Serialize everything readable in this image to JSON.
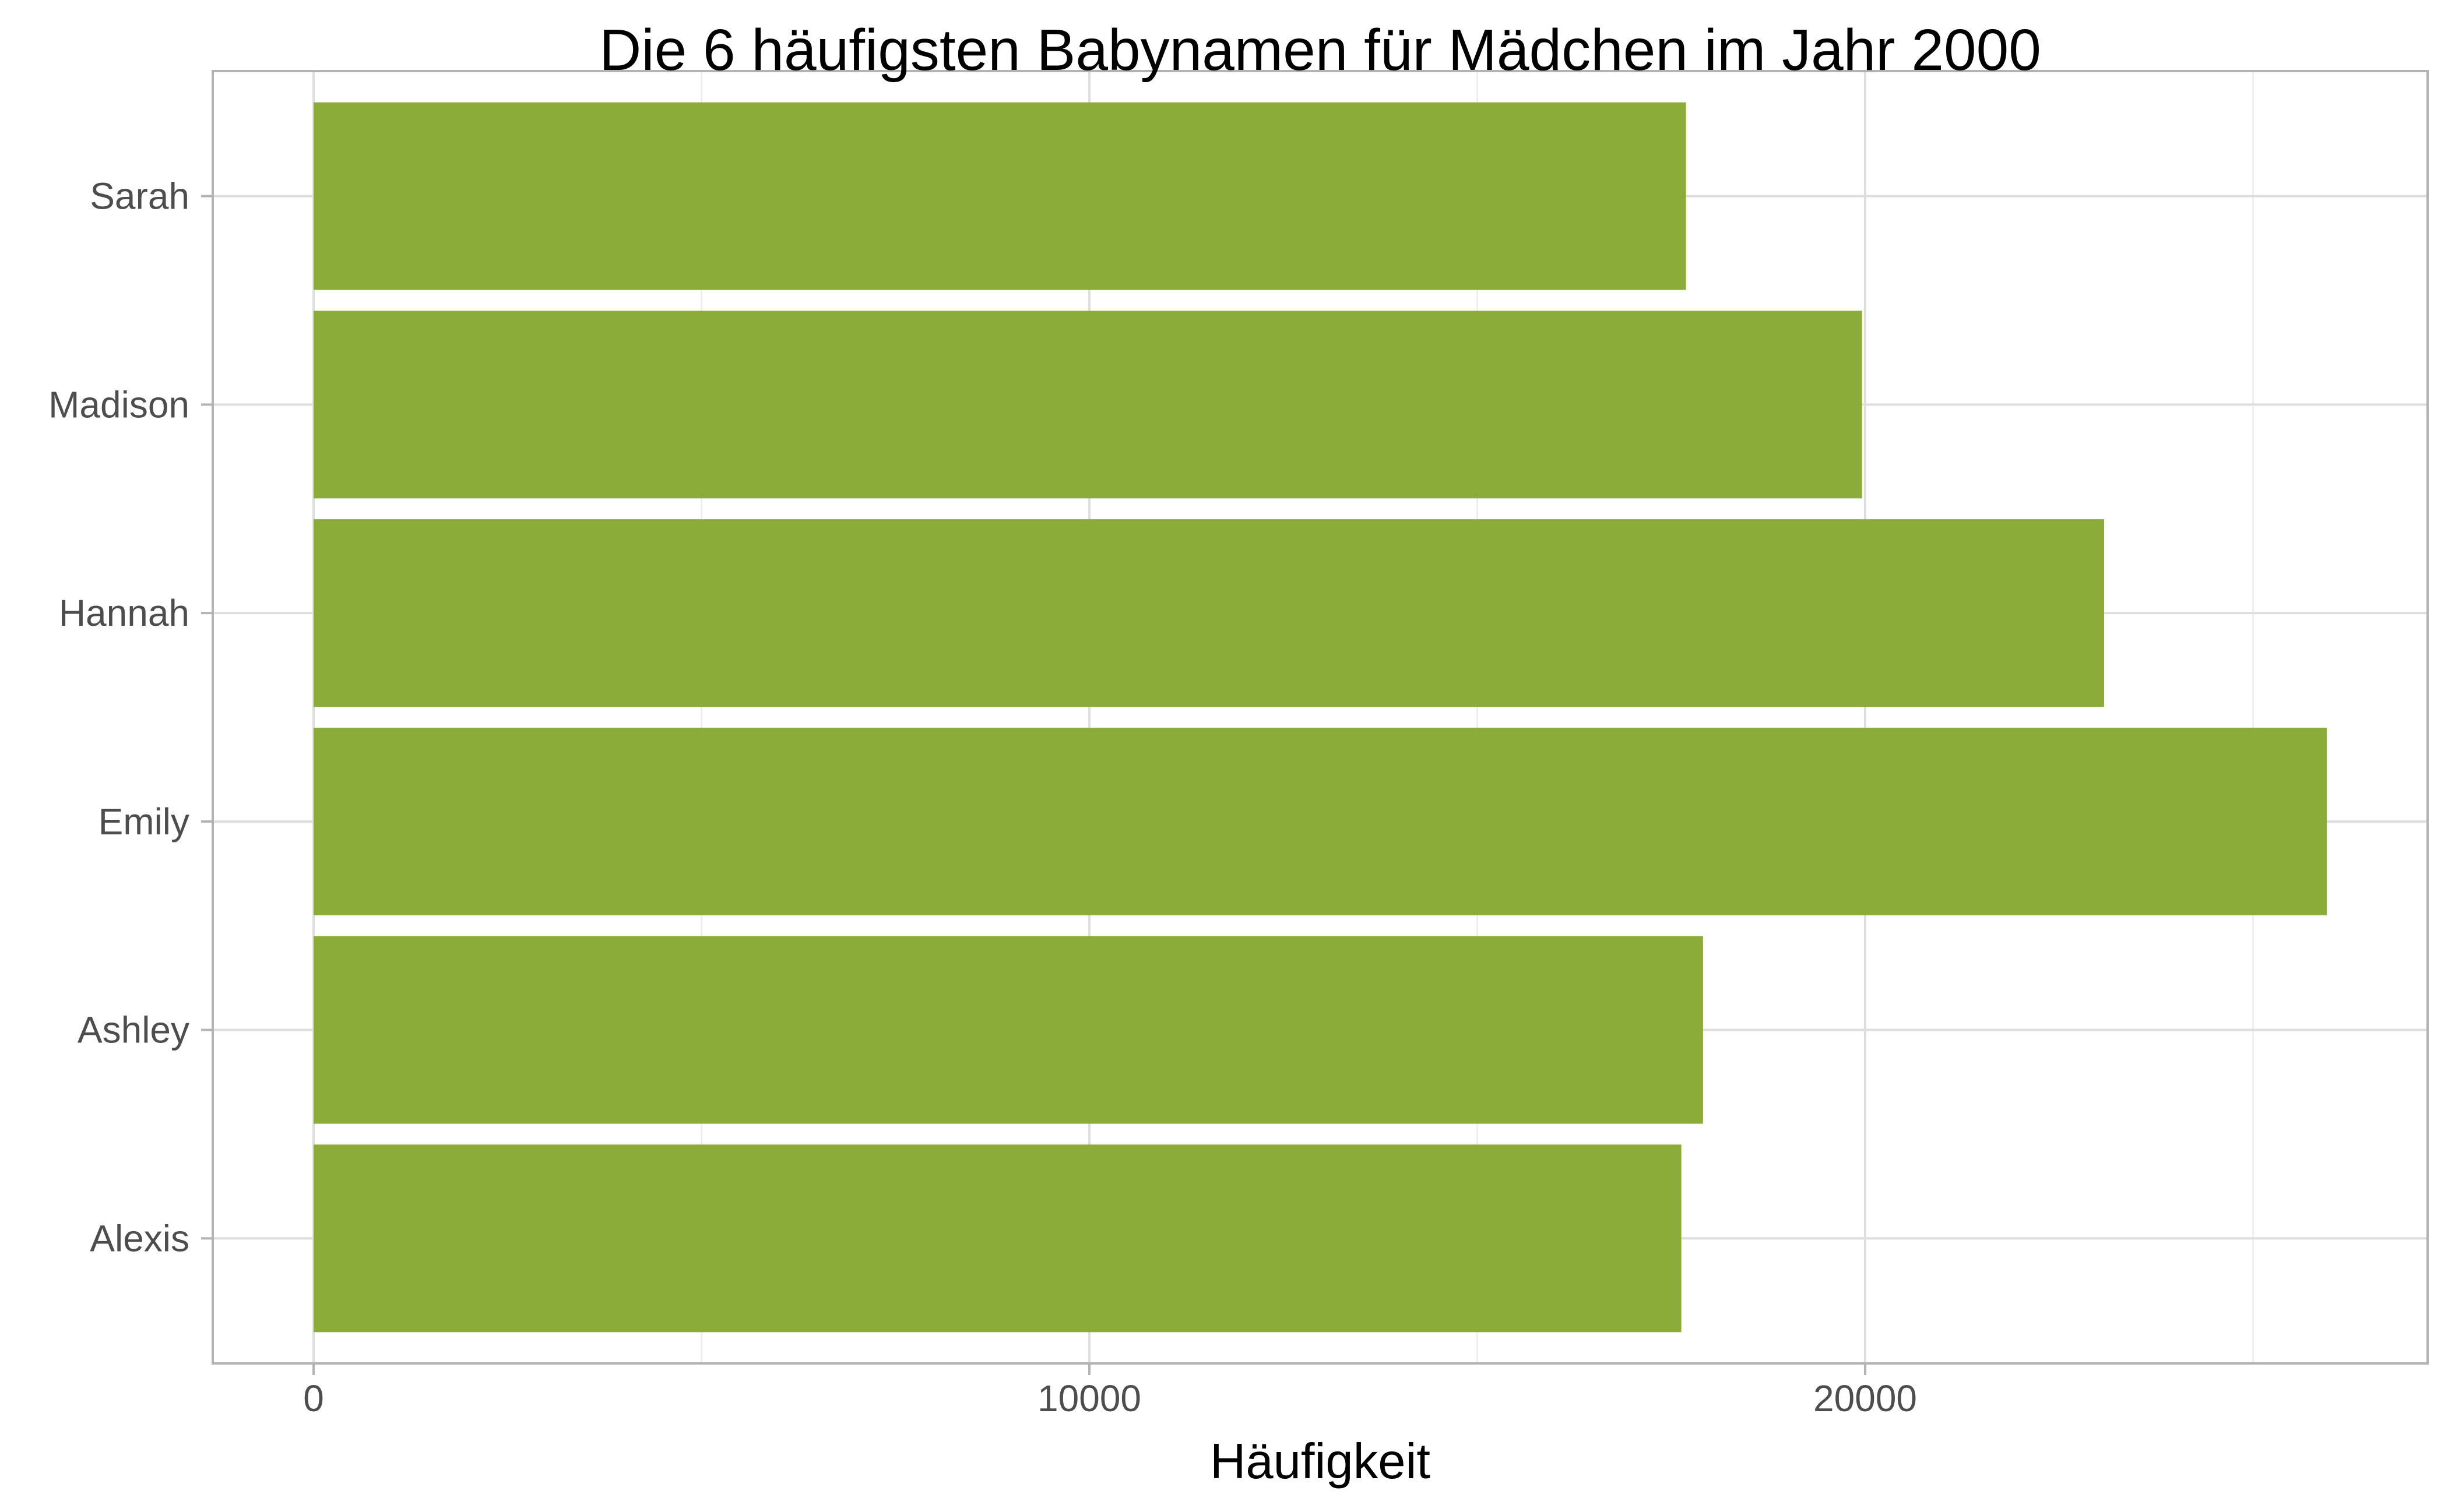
{
  "chart_data": {
    "type": "bar",
    "orientation": "horizontal",
    "title": "Die 6 häufigsten Babynamen für Mädchen im Jahr 2000",
    "xlabel": "Häufigkeit",
    "ylabel": "",
    "categories": [
      "Alexis",
      "Ashley",
      "Emily",
      "Hannah",
      "Madison",
      "Sarah"
    ],
    "values": [
      17630,
      17910,
      25950,
      23080,
      19960,
      17690
    ],
    "xlim": [
      -1300,
      27250
    ],
    "x_ticks": [
      0,
      10000,
      20000
    ],
    "x_tick_labels": [
      "0",
      "10000",
      "20000"
    ],
    "x_minor_ticks": [
      5000,
      15000,
      25000
    ],
    "bar_color": "#8bac39",
    "grid": true,
    "legend": "none"
  }
}
